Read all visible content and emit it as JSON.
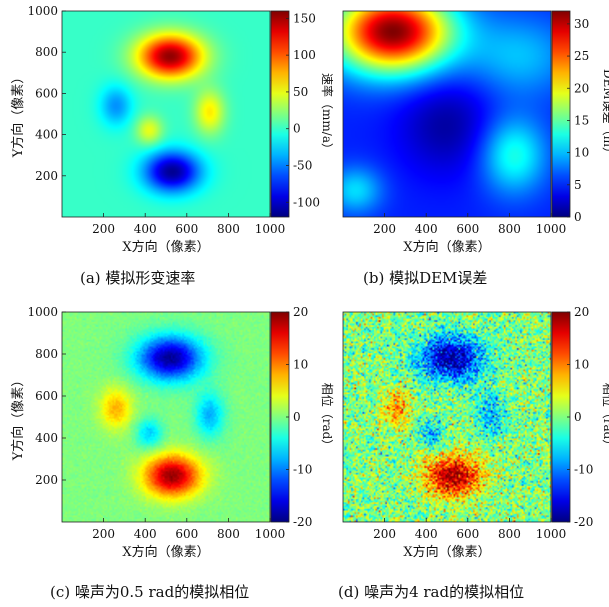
{
  "chart_data": [
    {
      "type": "heatmap",
      "caption": "(a) 模拟形变速率",
      "xlabel": "X方向（像素）",
      "ylabel": "Y方向（像素）",
      "xlim": [
        0,
        1000
      ],
      "ylim": [
        0,
        1000
      ],
      "xticks": [
        "200",
        "400",
        "600",
        "800",
        "1000"
      ],
      "yticks": [
        "200",
        "400",
        "600",
        "800",
        "1000"
      ],
      "colorbar": {
        "label": "速率（mm/a）",
        "range": [
          -120,
          160
        ],
        "ticks": [
          "-100",
          "-50",
          "0",
          "50",
          "100",
          "150"
        ],
        "tick_values": [
          -100,
          -50,
          0,
          50,
          100,
          150
        ]
      },
      "background": 0,
      "features": [
        {
          "cx": 520,
          "cy": 780,
          "sx": 110,
          "sy": 75,
          "peak": 155
        },
        {
          "cx": 530,
          "cy": 220,
          "sx": 95,
          "sy": 70,
          "peak": -115
        },
        {
          "cx": 260,
          "cy": 540,
          "sx": 55,
          "sy": 70,
          "peak": -45
        },
        {
          "cx": 710,
          "cy": 510,
          "sx": 50,
          "sy": 75,
          "peak": 60
        },
        {
          "cx": 420,
          "cy": 420,
          "sx": 45,
          "sy": 50,
          "peak": 50
        }
      ]
    },
    {
      "type": "heatmap",
      "caption": "(b) 模拟DEM误差",
      "xlabel": "X方向（像素）",
      "ylabel": "",
      "xlim": [
        0,
        1000
      ],
      "ylim": [
        0,
        1000
      ],
      "xticks": [
        "200",
        "400",
        "600",
        "800",
        "1000"
      ],
      "yticks": [],
      "colorbar": {
        "label": "DEM误差（m）",
        "range": [
          0,
          32
        ],
        "ticks": [
          "0",
          "5",
          "10",
          "15",
          "20",
          "25",
          "30"
        ],
        "tick_values": [
          0,
          5,
          10,
          15,
          20,
          25,
          30
        ]
      },
      "background": 5,
      "features": [
        {
          "cx": 240,
          "cy": 900,
          "sx": 200,
          "sy": 140,
          "peak": 27
        },
        {
          "cx": 850,
          "cy": 780,
          "sx": 180,
          "sy": 140,
          "peak": 5
        },
        {
          "cx": 820,
          "cy": 300,
          "sx": 110,
          "sy": 130,
          "peak": 8
        },
        {
          "cx": 60,
          "cy": 130,
          "sx": 90,
          "sy": 80,
          "peak": 6
        },
        {
          "cx": 500,
          "cy": 450,
          "sx": 160,
          "sy": 170,
          "peak": -4
        }
      ]
    },
    {
      "type": "heatmap",
      "caption": "(c) 噪声为0.5 rad的模拟相位",
      "xlabel": "X方向（像素）",
      "ylabel": "Y方向（像素）",
      "xlim": [
        0,
        1000
      ],
      "ylim": [
        0,
        1000
      ],
      "xticks": [
        "200",
        "400",
        "600",
        "800",
        "1000"
      ],
      "yticks": [
        "200",
        "400",
        "600",
        "800",
        "1000"
      ],
      "colorbar": {
        "label": "相位（rad）",
        "range": [
          -20,
          20
        ],
        "ticks": [
          "-20",
          "-10",
          "0",
          "10",
          "20"
        ],
        "tick_values": [
          -20,
          -10,
          0,
          10,
          20
        ]
      },
      "noise": 0.5,
      "background": 0,
      "features": [
        {
          "cx": 520,
          "cy": 780,
          "sx": 110,
          "sy": 75,
          "peak": -19
        },
        {
          "cx": 530,
          "cy": 220,
          "sx": 95,
          "sy": 70,
          "peak": 19
        },
        {
          "cx": 260,
          "cy": 540,
          "sx": 55,
          "sy": 70,
          "peak": 8
        },
        {
          "cx": 710,
          "cy": 510,
          "sx": 50,
          "sy": 75,
          "peak": -8
        },
        {
          "cx": 420,
          "cy": 420,
          "sx": 45,
          "sy": 50,
          "peak": -7
        }
      ]
    },
    {
      "type": "heatmap",
      "caption": "(d) 噪声为4 rad的模拟相位",
      "xlabel": "X方向（像素）",
      "ylabel": "",
      "xlim": [
        0,
        1000
      ],
      "ylim": [
        0,
        1000
      ],
      "xticks": [
        "200",
        "400",
        "600",
        "800",
        "1000"
      ],
      "yticks": [],
      "colorbar": {
        "label": "相位（rad）",
        "range": [
          -20,
          20
        ],
        "ticks": [
          "-20",
          "-10",
          "0",
          "10",
          "20"
        ],
        "tick_values": [
          -20,
          -10,
          0,
          10,
          20
        ]
      },
      "noise": 4,
      "background": 0,
      "features": [
        {
          "cx": 520,
          "cy": 780,
          "sx": 110,
          "sy": 75,
          "peak": -19
        },
        {
          "cx": 530,
          "cy": 220,
          "sx": 95,
          "sy": 70,
          "peak": 19
        },
        {
          "cx": 260,
          "cy": 540,
          "sx": 55,
          "sy": 70,
          "peak": 8
        },
        {
          "cx": 710,
          "cy": 510,
          "sx": 50,
          "sy": 75,
          "peak": -8
        },
        {
          "cx": 420,
          "cy": 420,
          "sx": 45,
          "sy": 50,
          "peak": -7
        }
      ]
    }
  ]
}
